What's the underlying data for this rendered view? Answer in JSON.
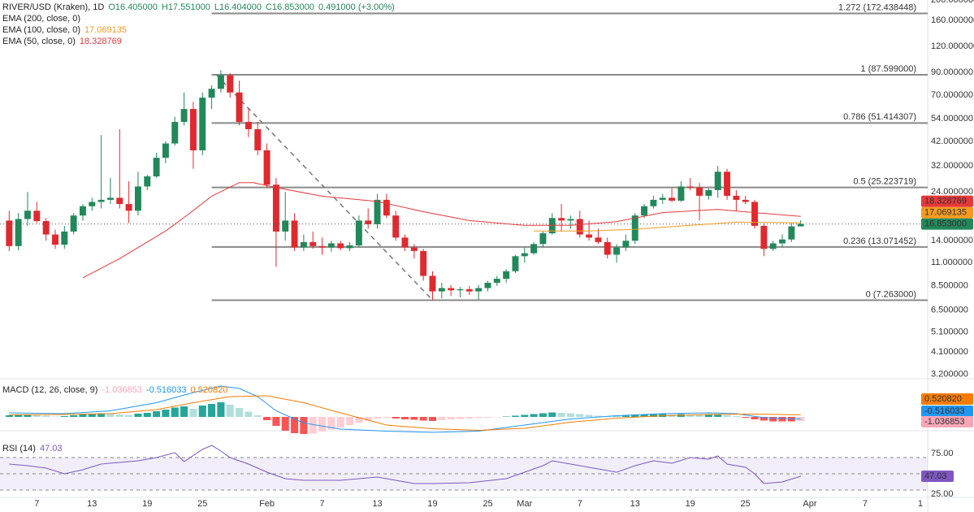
{
  "header": {
    "symbol": "RIVER/USD (Kraken), 1D",
    "ohlc": [
      "O16.405000",
      "H17.551000",
      "L16.404000",
      "C16.853000",
      "0.491000 (+3.00%)"
    ]
  },
  "chart_data": [
    {
      "type": "candlestick",
      "log_scale": true,
      "up_color": "#22885a",
      "down_color": "#e0292e",
      "x": [
        4,
        5,
        6,
        7,
        8,
        9,
        10,
        11,
        12,
        13,
        14,
        15,
        16,
        17,
        18,
        19,
        20,
        21,
        22,
        23,
        24,
        25,
        26,
        27,
        28,
        29,
        30,
        31,
        32,
        33,
        34,
        35,
        36,
        37,
        38,
        39,
        40,
        41,
        42,
        43,
        44,
        45,
        46,
        47,
        48,
        49,
        50,
        51,
        52,
        53,
        54,
        55,
        56,
        57,
        58,
        59,
        60,
        61,
        62,
        63,
        64,
        65,
        66,
        67,
        68,
        69,
        70,
        71,
        72,
        73,
        74,
        75,
        76,
        77,
        78,
        79,
        80,
        81,
        82,
        83,
        84,
        85,
        86,
        87,
        88,
        89,
        90
      ],
      "open": [
        17.5,
        13.2,
        17.8,
        19.5,
        17.4,
        15.0,
        13.4,
        15.5,
        18.5,
        20.5,
        21.5,
        22.0,
        22.5,
        21.0,
        19.5,
        25.5,
        28.5,
        35.0,
        41.0,
        52.0,
        60.0,
        38.0,
        68.0,
        75.0,
        87.0,
        72.0,
        52.0,
        48.0,
        38.0,
        26.0,
        15.5,
        17.5,
        13.0,
        13.8,
        13.2,
        13.0,
        13.6,
        12.9,
        13.3,
        17.5,
        16.8,
        22.0,
        18.5,
        14.5,
        13.0,
        12.5,
        9.5,
        8.0,
        8.3,
        8.1,
        8.2,
        8.0,
        8.3,
        8.8,
        9.2,
        10.0,
        11.8,
        12.2,
        13.5,
        15.2,
        18.0,
        17.5,
        17.8,
        15.0,
        14.5,
        13.8,
        12.0,
        13.0,
        14.0,
        18.5,
        20.5,
        22.0,
        22.5,
        21.8,
        25.5,
        25.2,
        23.0,
        24.5,
        30.0,
        23.0,
        22.0,
        21.5,
        16.5,
        12.8,
        13.6,
        14.2,
        16.405
      ],
      "high": [
        19.5,
        19.0,
        24.0,
        21.5,
        18.0,
        15.8,
        16.5,
        19.0,
        21.0,
        22.5,
        45.0,
        28.0,
        48.0,
        27.0,
        30.0,
        29.0,
        37.0,
        42.0,
        55.0,
        72.0,
        65.0,
        72.0,
        78.0,
        92.0,
        89.0,
        82.0,
        60.0,
        52.0,
        41.0,
        28.0,
        24.0,
        19.0,
        15.0,
        15.5,
        14.5,
        14.0,
        14.0,
        13.8,
        18.5,
        20.0,
        23.5,
        23.5,
        19.5,
        15.0,
        13.5,
        12.8,
        10.0,
        8.8,
        8.6,
        8.4,
        8.5,
        8.6,
        9.0,
        9.5,
        10.2,
        12.0,
        13.0,
        13.8,
        15.5,
        19.0,
        21.0,
        18.5,
        19.5,
        17.5,
        16.0,
        14.5,
        13.5,
        15.0,
        19.0,
        21.0,
        23.0,
        23.5,
        25.0,
        27.0,
        28.0,
        26.5,
        25.0,
        32.0,
        31.0,
        24.5,
        23.0,
        22.0,
        17.0,
        14.0,
        15.0,
        17.0,
        17.551
      ],
      "low": [
        12.5,
        12.6,
        16.5,
        17.0,
        14.0,
        12.8,
        12.8,
        15.0,
        17.5,
        19.5,
        20.0,
        21.0,
        20.0,
        17.0,
        18.5,
        24.5,
        28.0,
        33.0,
        40.0,
        50.0,
        31.0,
        36.0,
        60.0,
        72.0,
        68.0,
        50.0,
        44.0,
        36.0,
        25.0,
        10.5,
        14.0,
        12.5,
        12.5,
        12.8,
        12.0,
        12.4,
        12.6,
        12.5,
        13.0,
        16.0,
        16.0,
        18.0,
        14.0,
        12.5,
        11.5,
        9.0,
        7.263,
        7.4,
        7.6,
        7.5,
        7.7,
        7.3,
        8.0,
        8.5,
        8.8,
        9.8,
        11.0,
        12.0,
        13.0,
        15.0,
        15.5,
        16.0,
        14.5,
        14.0,
        13.5,
        11.5,
        11.0,
        12.5,
        13.5,
        18.0,
        20.0,
        21.0,
        21.5,
        21.5,
        24.5,
        17.5,
        22.0,
        22.5,
        22.0,
        19.5,
        21.0,
        16.0,
        11.8,
        12.5,
        13.0,
        13.8,
        16.404
      ],
      "close": [
        13.2,
        17.8,
        19.5,
        17.4,
        15.0,
        13.4,
        15.5,
        18.5,
        20.5,
        21.5,
        22.0,
        22.5,
        21.0,
        19.5,
        25.5,
        28.5,
        35.0,
        41.0,
        52.0,
        60.0,
        38.0,
        68.0,
        75.0,
        87.0,
        72.0,
        52.0,
        48.0,
        38.0,
        26.0,
        15.5,
        17.5,
        13.0,
        13.8,
        13.2,
        13.0,
        13.6,
        12.9,
        13.3,
        17.5,
        16.8,
        22.0,
        18.5,
        14.5,
        13.0,
        12.5,
        9.5,
        8.0,
        8.3,
        8.1,
        8.2,
        8.0,
        8.3,
        8.8,
        9.2,
        10.0,
        11.8,
        12.2,
        13.5,
        15.2,
        18.0,
        17.5,
        17.8,
        15.0,
        14.5,
        13.8,
        12.0,
        13.0,
        14.0,
        18.5,
        20.5,
        22.0,
        22.5,
        21.8,
        25.5,
        25.2,
        23.0,
        24.5,
        30.0,
        23.0,
        22.0,
        21.5,
        16.5,
        12.8,
        13.6,
        14.2,
        16.4,
        16.853
      ],
      "price_label": "16.853000",
      "series": [
        {
          "name": "EMA (200, close, 0)"
        },
        {
          "name": "EMA (100, close, 0)",
          "color": "#f59b1f",
          "x": [
            61,
            67,
            72,
            78,
            83,
            90
          ],
          "values": [
            15.6,
            15.6,
            15.9,
            16.6,
            17.2,
            17.069135
          ]
        },
        {
          "name": "EMA (50, close, 0)",
          "color": "#e5383b",
          "x": [
            12,
            16,
            21,
            23.5,
            26,
            29,
            30.5,
            33,
            38,
            44,
            49,
            54,
            60,
            65,
            70,
            75,
            81,
            85,
            90
          ],
          "values": [
            9.3,
            11.5,
            15.6,
            18.8,
            22.9,
            26.6,
            26.6,
            25.2,
            22.9,
            21.6,
            19.3,
            17.5,
            16.6,
            16.6,
            17.3,
            19.1,
            19.8,
            19.1,
            18.328769
          ]
        }
      ],
      "fib_start": 26,
      "fib_levels": [
        {
          "value": 172.438448,
          "label": "1.272 (172.438448)"
        },
        {
          "value": 87.599,
          "label": "1 (87.599000)"
        },
        {
          "value": 51.414307,
          "label": "0.786 (51.414307)"
        },
        {
          "value": 25.223719,
          "label": "0.5 (25.223719)"
        },
        {
          "value": 13.071452,
          "label": "0.236 (13.071452)"
        },
        {
          "value": 7.263,
          "label": "0 (7.263000)"
        }
      ],
      "trendline": {
        "x": [
          26.5,
          50
        ],
        "values": [
          87.599,
          7.263
        ]
      },
      "xlim": [
        3,
        103.8
      ],
      "xticks": [
        {
          "value": 7,
          "label": "7"
        },
        {
          "value": 13,
          "label": "13"
        },
        {
          "value": 19,
          "label": "19"
        },
        {
          "value": 25,
          "label": "25"
        },
        {
          "value": 32,
          "label": "Feb"
        },
        {
          "value": 38,
          "label": "7"
        },
        {
          "value": 44,
          "label": "13"
        },
        {
          "value": 50,
          "label": "19"
        },
        {
          "value": 56,
          "label": "25"
        },
        {
          "value": 60,
          "label": "Mar"
        },
        {
          "value": 66,
          "label": "7"
        },
        {
          "value": 72,
          "label": "13"
        },
        {
          "value": 78,
          "label": "19"
        },
        {
          "value": 84,
          "label": "25"
        },
        {
          "value": 91,
          "label": "Apr"
        },
        {
          "value": 97,
          "label": "7"
        },
        {
          "value": 103,
          "label": "1"
        }
      ],
      "ylim": [
        3.05,
        200
      ],
      "yticks": [
        {
          "value": 200,
          "label": "200.000000"
        },
        {
          "value": 160,
          "label": "160.000000"
        },
        {
          "value": 120,
          "label": "120.000000"
        },
        {
          "value": 90,
          "label": "90.000000"
        },
        {
          "value": 70,
          "label": "70.000000"
        },
        {
          "value": 54,
          "label": "54.000000"
        },
        {
          "value": 42,
          "label": "42.000000"
        },
        {
          "value": 32,
          "label": "32.000000"
        },
        {
          "value": 24,
          "label": "24.000000"
        },
        {
          "value": 14,
          "label": "14.000000"
        },
        {
          "value": 11,
          "label": "11.000000"
        },
        {
          "value": 8.5,
          "label": "8.500000"
        },
        {
          "value": 6.5,
          "label": "6.500000"
        },
        {
          "value": 5.1,
          "label": "5.100000"
        },
        {
          "value": 4.1,
          "label": "4.100000"
        },
        {
          "value": 3.2,
          "label": "3.200000"
        }
      ]
    },
    {
      "type": "macd",
      "title": "MACD (12, 26, close, 9)",
      "ylim": [
        -6.4,
        9
      ],
      "histogram": {
        "x": [
          4,
          5,
          6,
          7,
          8,
          9,
          10,
          11,
          12,
          13,
          14,
          15,
          16,
          17,
          18,
          19,
          20,
          21,
          22,
          23,
          24,
          25,
          26,
          27,
          28,
          29,
          30,
          31,
          32,
          33,
          34,
          35,
          36,
          37,
          38,
          39,
          40,
          41,
          42,
          43,
          44,
          45,
          46,
          47,
          48,
          49,
          50,
          51,
          52,
          53,
          54,
          55,
          56,
          57,
          58,
          59,
          60,
          61,
          62,
          63,
          64,
          65,
          66,
          67,
          68,
          69,
          70,
          71,
          72,
          73,
          74,
          75,
          76,
          77,
          78,
          79,
          80,
          81,
          82,
          83,
          84,
          85,
          86,
          87,
          88,
          89,
          90
        ],
        "values": [
          0.4,
          0.5,
          0.6,
          0.5,
          0.3,
          0.1,
          0.2,
          0.4,
          0.6,
          0.7,
          0.9,
          0.8,
          0.6,
          0.5,
          0.8,
          1.0,
          1.4,
          1.8,
          2.3,
          2.6,
          2.0,
          2.8,
          3.2,
          3.6,
          3.0,
          2.2,
          1.3,
          0.4,
          -0.8,
          -2.2,
          -3.4,
          -4.0,
          -4.2,
          -4.1,
          -3.6,
          -3.1,
          -2.6,
          -2.0,
          -1.4,
          -0.9,
          -0.4,
          -0.3,
          -0.4,
          -0.6,
          -0.7,
          -0.9,
          -1.0,
          -0.8,
          -0.6,
          -0.5,
          -0.4,
          -0.3,
          -0.2,
          -0.1,
          0.1,
          0.3,
          0.5,
          0.7,
          0.9,
          1.1,
          1.0,
          0.9,
          0.7,
          0.5,
          0.3,
          0.1,
          0.1,
          0.3,
          0.5,
          0.6,
          0.7,
          0.7,
          0.6,
          0.7,
          0.6,
          0.5,
          0.5,
          0.6,
          0.4,
          0.2,
          -0.2,
          -0.6,
          -0.9,
          -1.1,
          -1.1,
          -1.1,
          -1.036853
        ],
        "label": "-1.036853",
        "colors": [
          "#26a69a",
          "#b2dfdb",
          "#ff5252",
          "#ffcdd2"
        ],
        "color": "#f7a6b8"
      },
      "macd": {
        "color": "#2196f3",
        "label": "-0.516033",
        "x": [
          4,
          10,
          15,
          20,
          24,
          27,
          29,
          31,
          33,
          36,
          40,
          45,
          50,
          55,
          60,
          65,
          70,
          75,
          80,
          83,
          86,
          90
        ],
        "values": [
          1.0,
          0.8,
          1.5,
          3.5,
          6.0,
          7.6,
          7.0,
          5.0,
          1.5,
          -1.5,
          -3.0,
          -3.5,
          -3.8,
          -3.5,
          -2.0,
          -0.5,
          0.3,
          0.8,
          1.0,
          0.8,
          -0.2,
          -0.516033
        ]
      },
      "signal": {
        "color": "#f57c00",
        "label": "0.520820",
        "x": [
          4,
          10,
          15,
          20,
          24,
          28,
          32,
          36,
          40,
          45,
          50,
          55,
          60,
          65,
          70,
          75,
          80,
          85,
          90
        ],
        "values": [
          0.5,
          0.6,
          0.8,
          1.8,
          3.5,
          5.0,
          5.2,
          3.5,
          1.0,
          -2.0,
          -2.9,
          -3.3,
          -2.8,
          -1.3,
          -0.3,
          0.3,
          0.6,
          0.7,
          0.52082
        ]
      }
    },
    {
      "type": "rsi",
      "title": "RSI (14)",
      "color": "#7e57c2",
      "label": "47.03",
      "ylim": [
        21,
        101
      ],
      "band": [
        30,
        70
      ],
      "midline": 50,
      "yticks": [
        {
          "value": 75,
          "label": "75.00"
        },
        {
          "value": 25,
          "label": "25.00"
        }
      ],
      "x": [
        4,
        6,
        8,
        10,
        12,
        14,
        16,
        18,
        20,
        22,
        23,
        25,
        26,
        27,
        28,
        30,
        32,
        34,
        36,
        40,
        44,
        46,
        48,
        50,
        54,
        58,
        60,
        62,
        63,
        65,
        68,
        70,
        72,
        74,
        76,
        78,
        80,
        81,
        82,
        84,
        85,
        86,
        88,
        90
      ],
      "values": [
        62,
        60,
        57,
        50,
        55,
        62,
        64,
        66,
        70,
        76,
        65,
        80,
        85,
        78,
        70,
        62,
        52,
        44,
        42,
        42,
        46,
        42,
        38,
        38,
        39,
        44,
        52,
        60,
        66,
        62,
        56,
        52,
        60,
        66,
        63,
        70,
        68,
        72,
        62,
        58,
        50,
        38,
        40,
        47.03
      ]
    }
  ]
}
